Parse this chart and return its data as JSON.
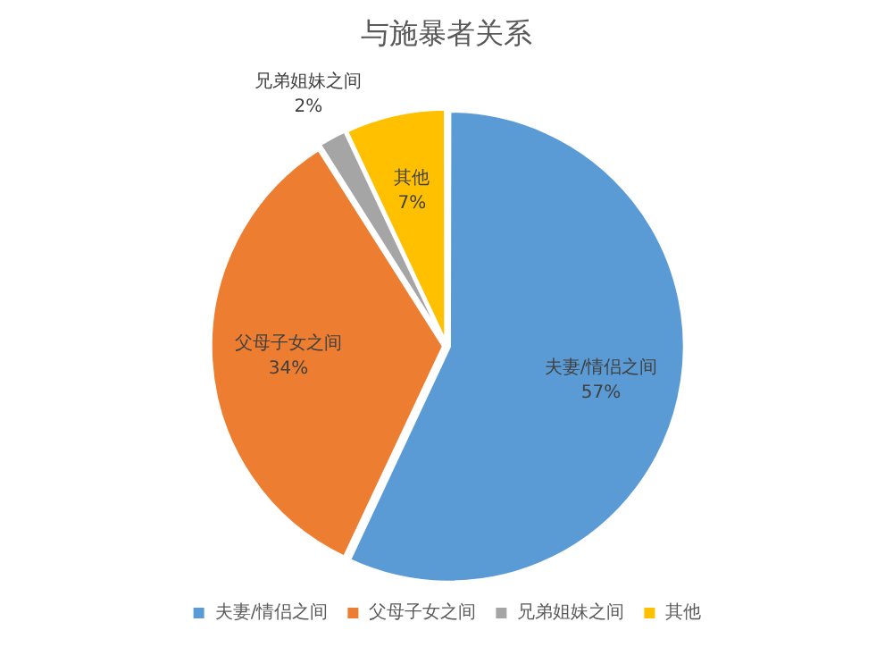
{
  "chart_data": {
    "type": "pie",
    "title": "与施暴者关系",
    "categories": [
      "夫妻/情侣之间",
      "父母子女之间",
      "兄弟姐妹之间",
      "其他"
    ],
    "values": [
      57,
      34,
      2,
      7
    ],
    "value_labels": [
      "57%",
      "34%",
      "2%",
      "7%"
    ],
    "colors": [
      "#5b9bd5",
      "#ed7d31",
      "#a5a5a5",
      "#ffc000"
    ],
    "legend": "bottom"
  }
}
